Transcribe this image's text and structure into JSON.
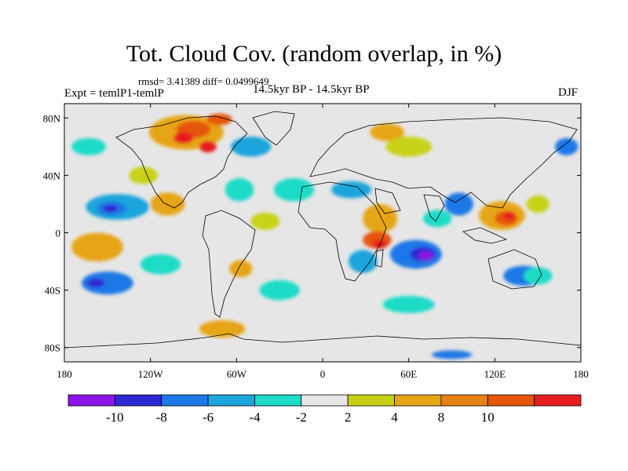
{
  "title": "Tot. Cloud Cov. (random overlap, in %)",
  "stats": "rmsd= 3.41389 diff= 0.0499649",
  "experiment": "Expt = temlP1-temlP",
  "period": "14.5kyr BP - 14.5kyr BP",
  "season": "DJF",
  "map": {
    "lat_ticks": [
      "80N",
      "40N",
      "0",
      "40S",
      "80S"
    ],
    "lat_values": [
      80,
      40,
      0,
      -40,
      -80
    ],
    "lon_ticks": [
      "180",
      "120W",
      "60W",
      "0",
      "60E",
      "120E",
      "180"
    ],
    "lon_values": [
      -180,
      -120,
      -60,
      0,
      60,
      120,
      180
    ],
    "lat_range": [
      -90,
      90
    ],
    "lon_range": [
      -180,
      180
    ],
    "background_color": "#e6e6e6"
  },
  "colorbar": {
    "colors": [
      "#8c14e6",
      "#2d28d2",
      "#1e78e6",
      "#1ea5dc",
      "#1edcc8",
      "#e6e6e6",
      "#c8d214",
      "#e6a514",
      "#e68214",
      "#e6550a",
      "#e61e1e"
    ],
    "labels": [
      "-10",
      "-8",
      "-6",
      "-4",
      "-2",
      "2",
      "4",
      "8",
      "10"
    ]
  },
  "anomaly_blobs": [
    {
      "lon": -143,
      "lat": 18,
      "rx": 22,
      "ry": 9,
      "color": "#1ea5dc"
    },
    {
      "lon": -147,
      "lat": 17,
      "rx": 10,
      "ry": 5,
      "color": "#1e78e6"
    },
    {
      "lon": -148,
      "lat": 17,
      "rx": 5,
      "ry": 2.5,
      "color": "#2d28d2"
    },
    {
      "lon": -157,
      "lat": -10,
      "rx": 18,
      "ry": 10,
      "color": "#e6a514"
    },
    {
      "lon": -150,
      "lat": -35,
      "rx": 18,
      "ry": 8,
      "color": "#1e78e6"
    },
    {
      "lon": -158,
      "lat": -35,
      "rx": 6,
      "ry": 3,
      "color": "#2d28d2"
    },
    {
      "lon": -163,
      "lat": 60,
      "rx": 12,
      "ry": 6,
      "color": "#1edcc8"
    },
    {
      "lon": -125,
      "lat": 40,
      "rx": 10,
      "ry": 6,
      "color": "#c8d214"
    },
    {
      "lon": -108,
      "lat": 20,
      "rx": 12,
      "ry": 8,
      "color": "#e6a514"
    },
    {
      "lon": -113,
      "lat": -22,
      "rx": 14,
      "ry": 7,
      "color": "#1edcc8"
    },
    {
      "lon": -95,
      "lat": 70,
      "rx": 26,
      "ry": 12,
      "color": "#e6a514"
    },
    {
      "lon": -90,
      "lat": 72,
      "rx": 12,
      "ry": 6,
      "color": "#e6550a"
    },
    {
      "lon": -97,
      "lat": 66,
      "rx": 7,
      "ry": 4,
      "color": "#e61e1e"
    },
    {
      "lon": -80,
      "lat": 60,
      "rx": 6,
      "ry": 4,
      "color": "#e61e1e"
    },
    {
      "lon": -72,
      "lat": 79,
      "rx": 9,
      "ry": 4,
      "color": "#e6550a"
    },
    {
      "lon": -50,
      "lat": 60,
      "rx": 14,
      "ry": 7,
      "color": "#1ea5dc"
    },
    {
      "lon": -58,
      "lat": 30,
      "rx": 10,
      "ry": 8,
      "color": "#1edcc8"
    },
    {
      "lon": -40,
      "lat": 8,
      "rx": 10,
      "ry": 6,
      "color": "#c8d214"
    },
    {
      "lon": -20,
      "lat": 30,
      "rx": 14,
      "ry": 8,
      "color": "#1edcc8"
    },
    {
      "lon": -57,
      "lat": -25,
      "rx": 8,
      "ry": 6,
      "color": "#e6a514"
    },
    {
      "lon": -30,
      "lat": -40,
      "rx": 14,
      "ry": 7,
      "color": "#1edcc8"
    },
    {
      "lon": 45,
      "lat": 70,
      "rx": 12,
      "ry": 6,
      "color": "#e6a514"
    },
    {
      "lon": 60,
      "lat": 60,
      "rx": 16,
      "ry": 7,
      "color": "#c8d214"
    },
    {
      "lon": 20,
      "lat": 30,
      "rx": 14,
      "ry": 6,
      "color": "#1ea5dc"
    },
    {
      "lon": 40,
      "lat": 10,
      "rx": 12,
      "ry": 10,
      "color": "#e6a514"
    },
    {
      "lon": 38,
      "lat": -5,
      "rx": 10,
      "ry": 6,
      "color": "#e6550a"
    },
    {
      "lon": 40,
      "lat": -8,
      "rx": 5,
      "ry": 3,
      "color": "#e61e1e"
    },
    {
      "lon": 28,
      "lat": -20,
      "rx": 10,
      "ry": 8,
      "color": "#1ea5dc"
    },
    {
      "lon": 65,
      "lat": -15,
      "rx": 18,
      "ry": 10,
      "color": "#1e78e6"
    },
    {
      "lon": 70,
      "lat": -15,
      "rx": 9,
      "ry": 5,
      "color": "#2d28d2"
    },
    {
      "lon": 72,
      "lat": -16,
      "rx": 5,
      "ry": 3,
      "color": "#8c14e6"
    },
    {
      "lon": 80,
      "lat": 10,
      "rx": 10,
      "ry": 6,
      "color": "#1edcc8"
    },
    {
      "lon": 95,
      "lat": 20,
      "rx": 10,
      "ry": 8,
      "color": "#1e78e6"
    },
    {
      "lon": 125,
      "lat": 12,
      "rx": 16,
      "ry": 10,
      "color": "#e6a514"
    },
    {
      "lon": 128,
      "lat": 10,
      "rx": 8,
      "ry": 5,
      "color": "#e6550a"
    },
    {
      "lon": 130,
      "lat": 12,
      "rx": 4,
      "ry": 3,
      "color": "#e61e1e"
    },
    {
      "lon": 150,
      "lat": 20,
      "rx": 8,
      "ry": 6,
      "color": "#c8d214"
    },
    {
      "lon": 170,
      "lat": 60,
      "rx": 8,
      "ry": 6,
      "color": "#1e78e6"
    },
    {
      "lon": 140,
      "lat": -30,
      "rx": 14,
      "ry": 7,
      "color": "#1e78e6"
    },
    {
      "lon": 150,
      "lat": -30,
      "rx": 10,
      "ry": 6,
      "color": "#1edcc8"
    },
    {
      "lon": 60,
      "lat": -50,
      "rx": 18,
      "ry": 6,
      "color": "#1edcc8"
    },
    {
      "lon": -70,
      "lat": -67,
      "rx": 16,
      "ry": 6,
      "color": "#e6a514"
    },
    {
      "lon": 90,
      "lat": -85,
      "rx": 14,
      "ry": 3,
      "color": "#1e78e6"
    }
  ]
}
